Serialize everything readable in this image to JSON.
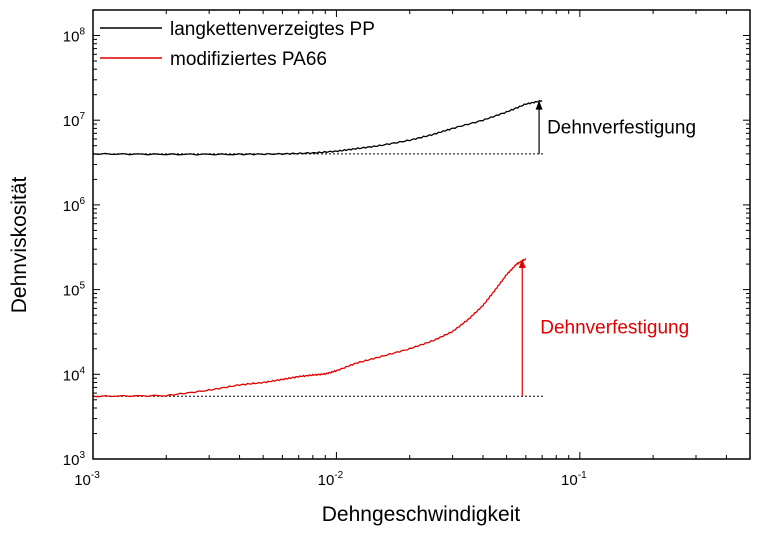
{
  "chart_data": {
    "type": "line",
    "xlabel": "Dehngeschwindigkeit",
    "ylabel": "Dehnviskosität",
    "x_scale": "log",
    "y_scale": "log",
    "xlim": [
      0.001,
      0.5
    ],
    "ylim": [
      1000,
      200000000
    ],
    "x_ticks": [
      {
        "base": "10",
        "exp": "-3"
      },
      {
        "base": "10",
        "exp": "-2"
      },
      {
        "base": "10",
        "exp": "-1"
      }
    ],
    "y_ticks": [
      {
        "base": "10",
        "exp": "3"
      },
      {
        "base": "10",
        "exp": "4"
      },
      {
        "base": "10",
        "exp": "5"
      },
      {
        "base": "10",
        "exp": "6"
      },
      {
        "base": "10",
        "exp": "7"
      },
      {
        "base": "10",
        "exp": "8"
      }
    ],
    "grid": false,
    "legend_position": "top-left",
    "series": [
      {
        "name": "langkettenverzeigtes PP",
        "color": "#000000",
        "x": [
          0.001,
          0.002,
          0.004,
          0.006,
          0.008,
          0.01,
          0.012,
          0.015,
          0.02,
          0.025,
          0.03,
          0.04,
          0.05,
          0.06,
          0.07
        ],
        "y": [
          4000000,
          3950000,
          3950000,
          4000000,
          4100000,
          4300000,
          4600000,
          5000000,
          5800000,
          6800000,
          8000000,
          10000000,
          12500000,
          15500000,
          17000000
        ]
      },
      {
        "name": "modifiziertes PA66",
        "color": "#e00000",
        "x": [
          0.001,
          0.002,
          0.003,
          0.004,
          0.005,
          0.006,
          0.007,
          0.008,
          0.009,
          0.01,
          0.012,
          0.015,
          0.02,
          0.025,
          0.03,
          0.035,
          0.04,
          0.045,
          0.05,
          0.055,
          0.06
        ],
        "y": [
          5500,
          5600,
          6500,
          7500,
          8000,
          8700,
          9400,
          9800,
          10100,
          11000,
          13500,
          16000,
          20000,
          25000,
          32000,
          45000,
          65000,
          100000,
          150000,
          200000,
          230000
        ]
      }
    ],
    "reference_lines": [
      {
        "y": 4000000,
        "x": [
          0.001,
          0.07
        ],
        "color": "#000000",
        "style": "dotted"
      },
      {
        "y": 5500,
        "x": [
          0.001,
          0.07
        ],
        "color": "#000000",
        "style": "dotted"
      }
    ],
    "annotations": [
      {
        "text": "Dehnverfestigung",
        "color": "#000000",
        "arrow_x": 0.068,
        "arrow_from_y": 4000000,
        "arrow_to_y": 17000000
      },
      {
        "text": "Dehnverfestigung",
        "color": "#e00000",
        "arrow_x": 0.058,
        "arrow_from_y": 5500,
        "arrow_to_y": 230000
      }
    ]
  }
}
